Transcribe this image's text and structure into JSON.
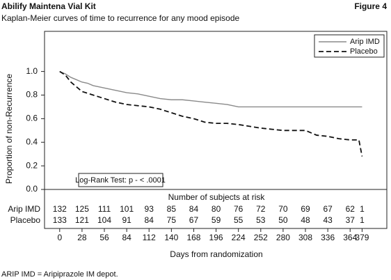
{
  "chart_data": {
    "type": "line",
    "title": "Abilify Maintena Vial Kit",
    "figure_label": "Figure 4",
    "subtitle": "Kaplan-Meier curves of time to recurrence for any mood episode",
    "y_label": "Proportion of non-Recurrence",
    "x_label": "Days from randomization",
    "annotation": "Log-Rank Test: p - < .0001",
    "footnote": "ARIP IMD = Aripiprazole IM depot.",
    "xlim": [
      -19,
      410
    ],
    "ylim": [
      0,
      1.34
    ],
    "xticks": [
      0,
      28,
      56,
      84,
      112,
      140,
      168,
      196,
      224,
      252,
      280,
      308,
      336,
      364,
      379
    ],
    "yticks": [
      {
        "value": 0,
        "label": "0.0"
      },
      0.2,
      0.4,
      0.6,
      0.8,
      {
        "value": 1,
        "label": "1.0"
      }
    ],
    "legend": "top-right",
    "series": [
      {
        "name": "Arip IMD",
        "color": "#8a8a8a",
        "dash": false,
        "x": [
          0,
          7,
          14,
          21,
          28,
          35,
          42,
          56,
          70,
          84,
          98,
          112,
          126,
          140,
          154,
          168,
          182,
          196,
          210,
          224,
          252,
          280,
          308,
          336,
          364,
          379
        ],
        "values": [
          1.0,
          0.98,
          0.95,
          0.93,
          0.91,
          0.9,
          0.88,
          0.86,
          0.84,
          0.82,
          0.81,
          0.79,
          0.77,
          0.76,
          0.76,
          0.75,
          0.74,
          0.73,
          0.72,
          0.7,
          0.7,
          0.7,
          0.7,
          0.7,
          0.7,
          0.7
        ]
      },
      {
        "name": "Placebo",
        "color": "#111111",
        "dash": true,
        "x": [
          0,
          7,
          14,
          21,
          28,
          42,
          56,
          70,
          84,
          98,
          112,
          126,
          140,
          154,
          168,
          182,
          196,
          210,
          224,
          252,
          266,
          280,
          308,
          322,
          336,
          350,
          364,
          375,
          379
        ],
        "values": [
          1.0,
          0.97,
          0.91,
          0.87,
          0.83,
          0.8,
          0.77,
          0.74,
          0.72,
          0.71,
          0.7,
          0.68,
          0.65,
          0.62,
          0.6,
          0.57,
          0.56,
          0.56,
          0.55,
          0.52,
          0.51,
          0.5,
          0.5,
          0.46,
          0.45,
          0.43,
          0.42,
          0.42,
          0.28
        ]
      }
    ],
    "risk_table": {
      "title": "Number of subjects at risk",
      "rows": [
        {
          "label": "Arip IMD",
          "values": [
            132,
            125,
            111,
            101,
            93,
            85,
            84,
            80,
            76,
            72,
            70,
            69,
            67,
            62,
            1
          ]
        },
        {
          "label": "Placebo",
          "values": [
            133,
            121,
            104,
            91,
            84,
            75,
            67,
            59,
            55,
            53,
            50,
            48,
            43,
            37,
            1
          ]
        }
      ]
    }
  }
}
